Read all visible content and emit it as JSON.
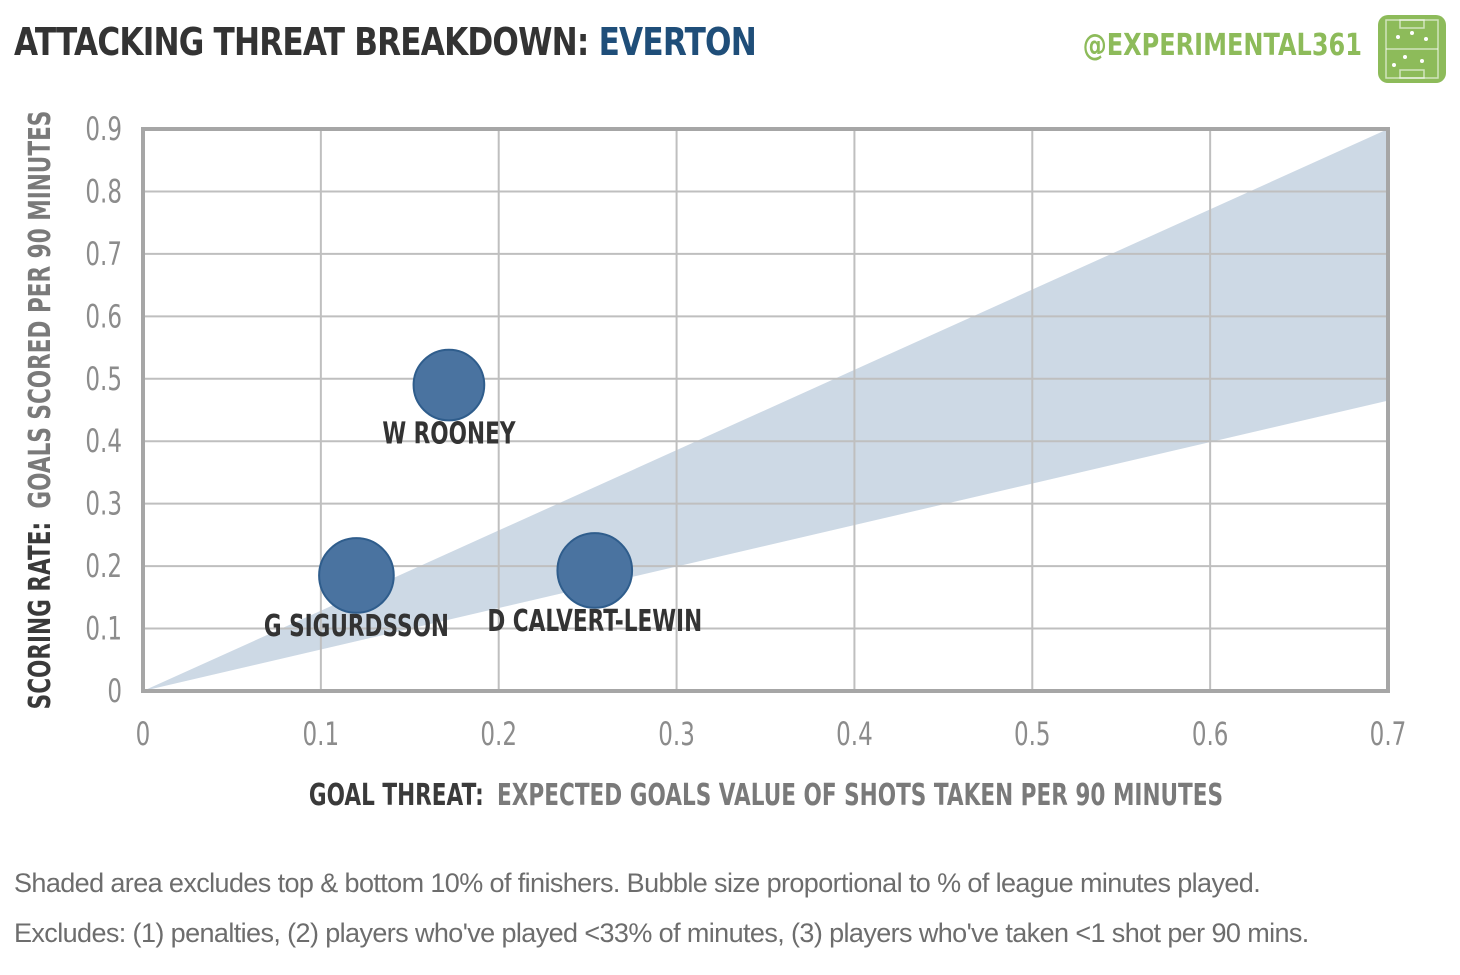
{
  "header": {
    "title_prefix": "ATTACKING THREAT BREAKDOWN:",
    "team": "EVERTON",
    "handle": "@EXPERIMENTAL361"
  },
  "colors": {
    "title": "#333333",
    "team": "#1f4e79",
    "handle": "#8dbb5a",
    "bubble": "#4a73a0",
    "band": "#cdd9e5",
    "grid": "#bfbfbf",
    "frame": "#a6a6a6"
  },
  "chart_data": {
    "type": "scatter",
    "xlabel_bold": "GOAL THREAT:",
    "xlabel": "EXPECTED GOALS VALUE OF SHOTS TAKEN PER 90 MINUTES",
    "ylabel_bold": "SCORING RATE:",
    "ylabel": "GOALS SCORED PER 90 MINUTES",
    "xlim": [
      0,
      0.7
    ],
    "ylim": [
      0,
      0.9
    ],
    "xticks": [
      "0",
      "0.1",
      "0.2",
      "0.3",
      "0.4",
      "0.5",
      "0.6",
      "0.7"
    ],
    "yticks": [
      "0",
      "0.1",
      "0.2",
      "0.3",
      "0.4",
      "0.5",
      "0.6",
      "0.7",
      "0.8",
      "0.9"
    ],
    "grid": true,
    "band": {
      "upper": [
        [
          0,
          0
        ],
        [
          0.7,
          0.9
        ]
      ],
      "lower": [
        [
          0,
          0
        ],
        [
          0.7,
          0.465
        ]
      ]
    },
    "points": [
      {
        "label": "W ROONEY",
        "x": 0.172,
        "y": 0.49,
        "minutes_share": 0.52
      },
      {
        "label": "G SIGURDSSON",
        "x": 0.12,
        "y": 0.185,
        "minutes_share": 0.58
      },
      {
        "label": "D CALVERT-LEWIN",
        "x": 0.254,
        "y": 0.193,
        "minutes_share": 0.58
      }
    ]
  },
  "footnotes": [
    "Shaded area excludes top & bottom  10% of finishers. Bubble size proportional to % of league minutes played.",
    "Excludes: (1) penalties, (2) players who've played <33% of minutes, (3) players who've taken <1 shot per 90 mins."
  ]
}
